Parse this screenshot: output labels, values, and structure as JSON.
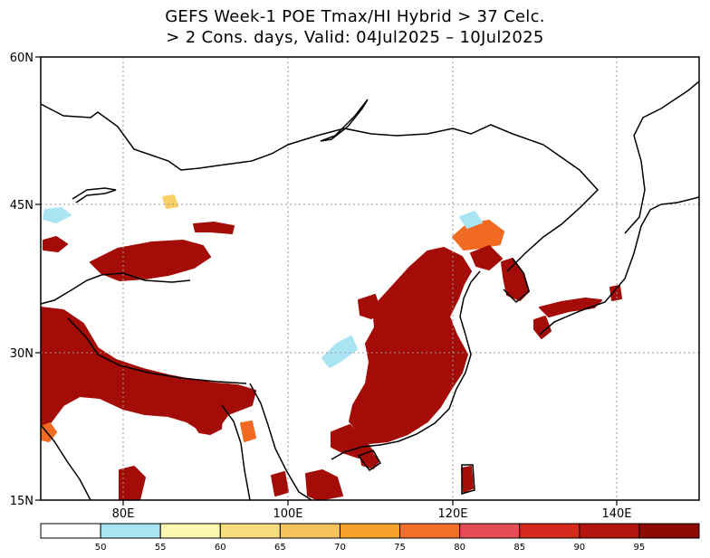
{
  "title": {
    "line1": "GEFS Week-1 POE Tmax/HI Hybrid > 37 Celc.",
    "line2": "> 2 Cons. days, Valid: 04Jul2025 – 10Jul2025"
  },
  "axes": {
    "lat_labels": [
      "60N",
      "45N",
      "30N",
      "15N"
    ],
    "lon_labels": [
      "80E",
      "100E",
      "120E",
      "140E"
    ],
    "lat_range": [
      15,
      60
    ],
    "lon_range": [
      70,
      150
    ]
  },
  "colorbar": {
    "ticks": [
      "50",
      "55",
      "60",
      "65",
      "70",
      "75",
      "80",
      "85",
      "90",
      "95"
    ],
    "colors": [
      "#ffffff",
      "#a9e4f2",
      "#fbf6b0",
      "#f9dd7c",
      "#f6c25a",
      "#f6a12a",
      "#f36f2a",
      "#e44d55",
      "#d5291d",
      "#b4140e",
      "#8e0a04"
    ]
  },
  "map_colors": {
    "high": "#a40d07",
    "mid": "#f06a22",
    "low": "#f8cf67",
    "faint": "#a9e4f2"
  }
}
